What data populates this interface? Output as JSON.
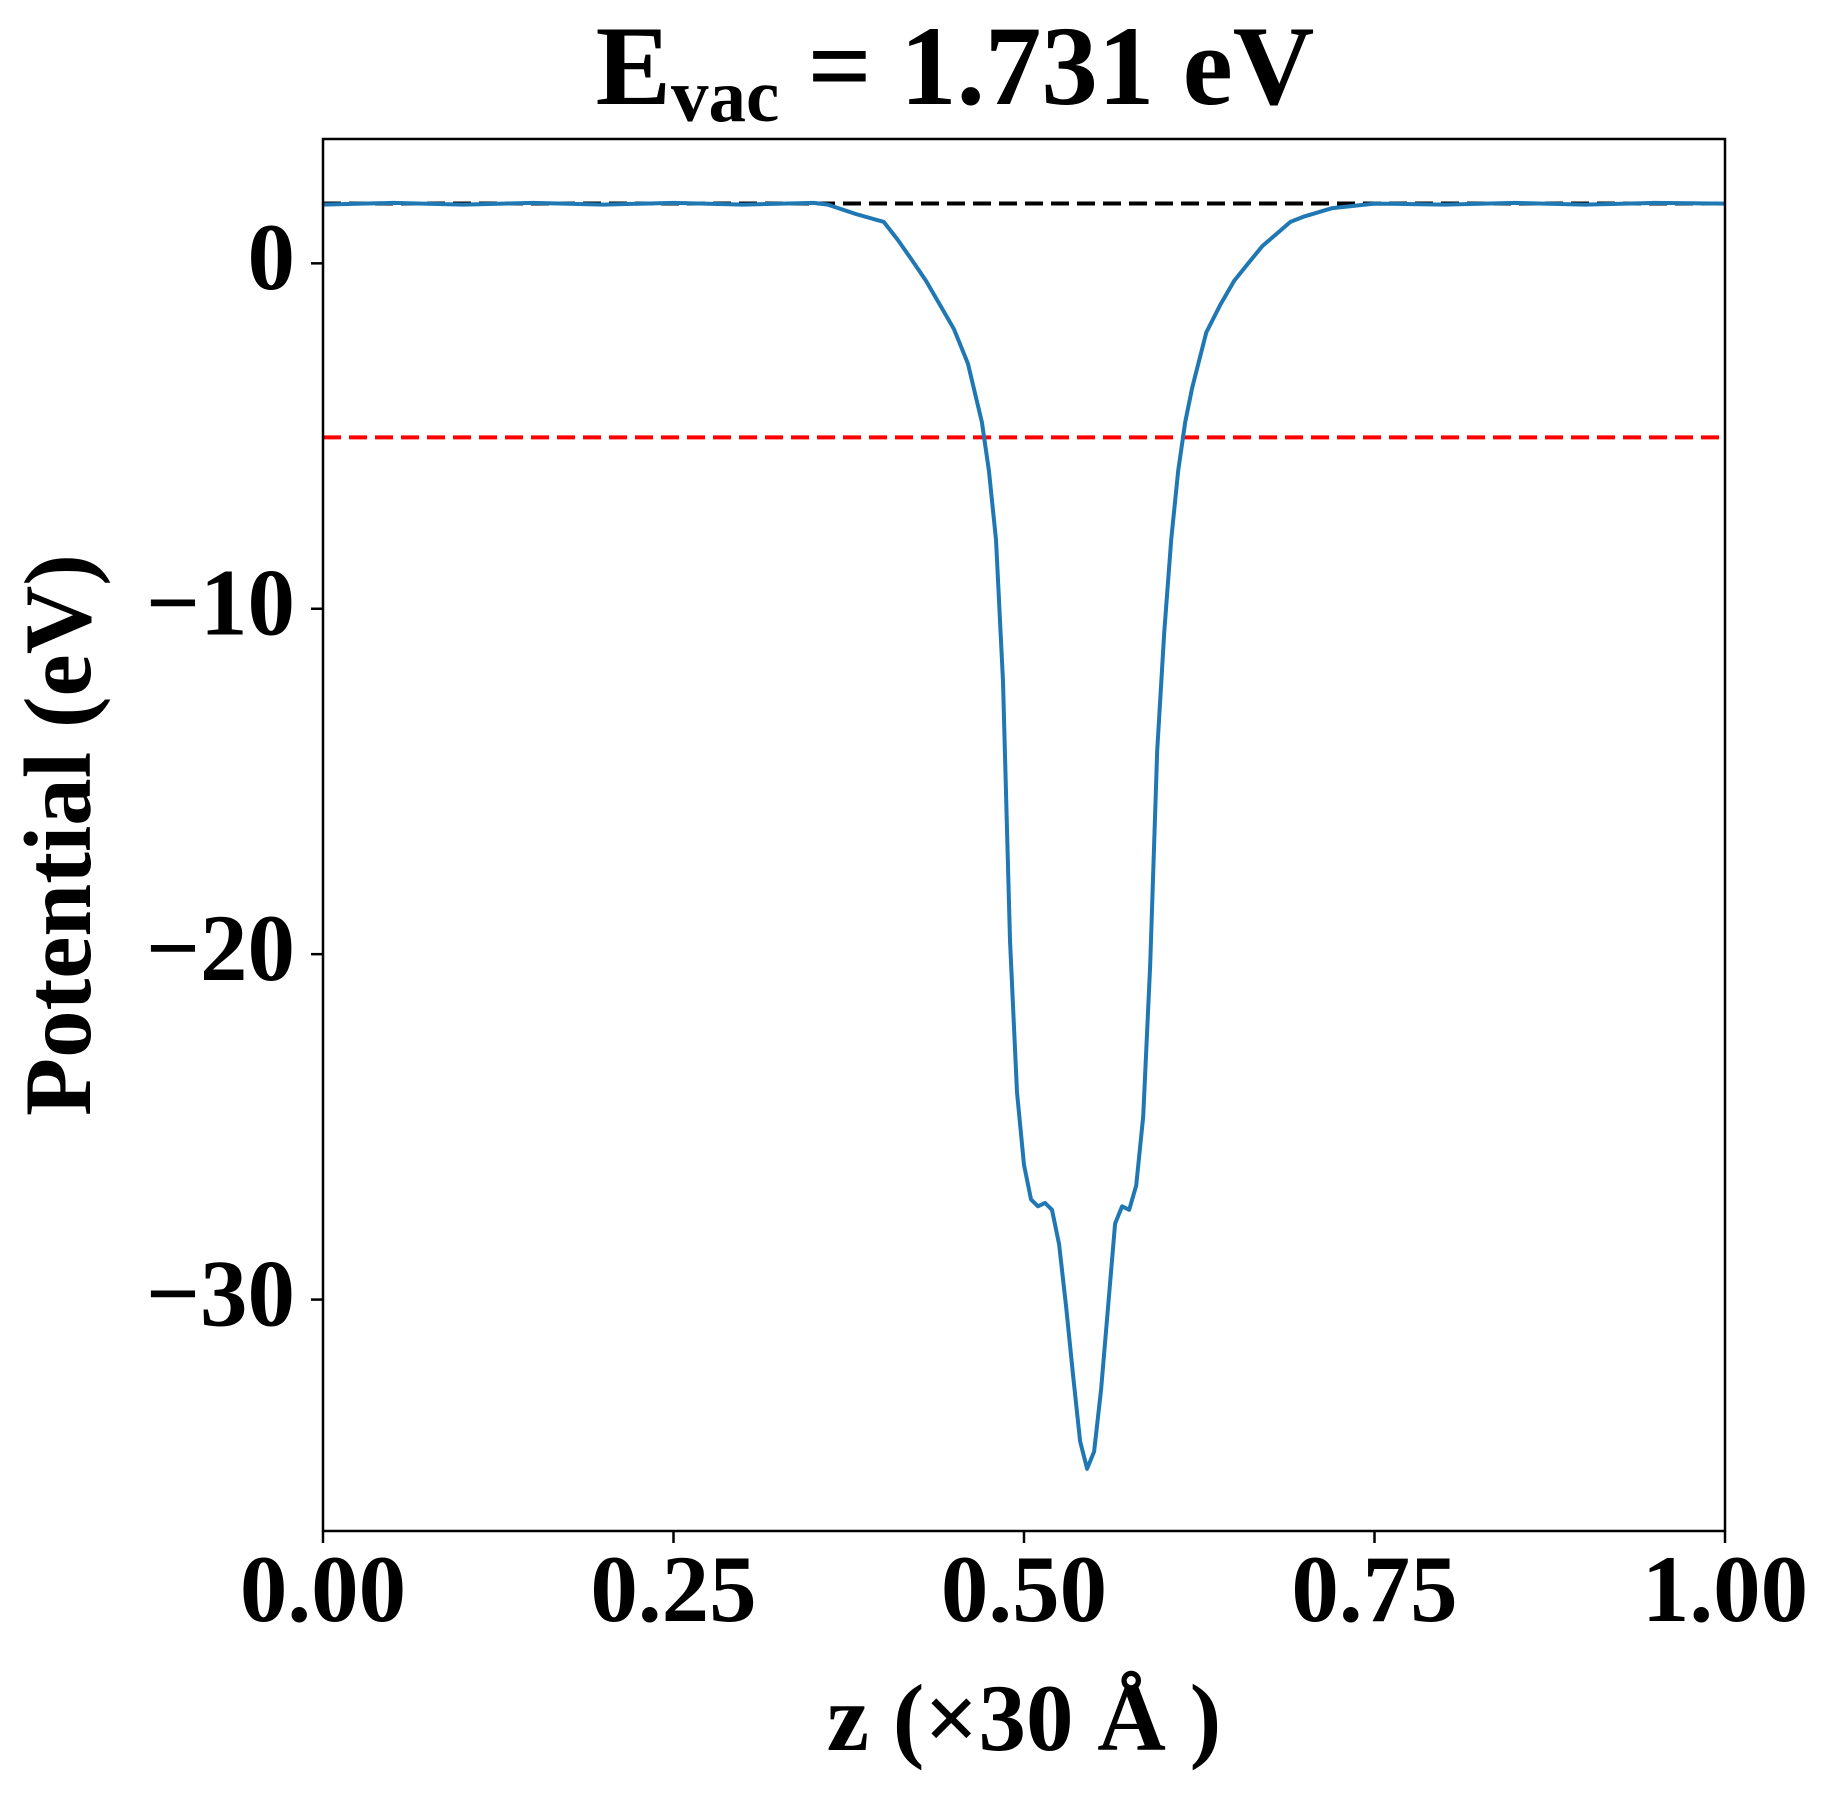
{
  "chart_data": {
    "type": "line",
    "title": {
      "main": "E",
      "sub": "vac",
      "rest": " = 1.731 eV"
    },
    "xlabel": "z (×30 Å )",
    "ylabel": "Potential (eV)",
    "xlim": [
      0,
      1
    ],
    "ylim": [
      -36.7,
      3.6
    ],
    "xticks": [
      {
        "value": 0,
        "label": "0.00"
      },
      {
        "value": 0.25,
        "label": "0.25"
      },
      {
        "value": 0.5,
        "label": "0.50"
      },
      {
        "value": 0.75,
        "label": "0.75"
      },
      {
        "value": 1,
        "label": "1.00"
      }
    ],
    "yticks": [
      {
        "value": 0,
        "label": "0"
      },
      {
        "value": -10,
        "label": "−10"
      },
      {
        "value": -20,
        "label": "−20"
      },
      {
        "value": -30,
        "label": "−30"
      }
    ],
    "hlines": [
      {
        "value": 1.731,
        "color": "#000000"
      },
      {
        "value": -5.04,
        "color": "#ff0000"
      }
    ],
    "series": [
      {
        "color": "#1f77b4",
        "x": [
          0,
          0.05,
          0.1,
          0.15,
          0.2,
          0.25,
          0.3,
          0.35,
          0.36,
          0.38,
          0.4,
          0.41,
          0.42,
          0.43,
          0.44,
          0.45,
          0.46,
          0.47,
          0.475,
          0.48,
          0.485,
          0.49,
          0.495,
          0.5,
          0.505,
          0.51,
          0.515,
          0.52,
          0.525,
          0.53,
          0.535,
          0.54,
          0.545,
          0.55,
          0.555,
          0.56,
          0.565,
          0.57,
          0.575,
          0.58,
          0.585,
          0.59,
          0.595,
          0.6,
          0.605,
          0.61,
          0.615,
          0.62,
          0.63,
          0.64,
          0.65,
          0.66,
          0.67,
          0.68,
          0.69,
          0.7,
          0.72,
          0.75,
          0.8,
          0.85,
          0.9,
          0.95,
          1.0
        ],
        "values": [
          1.7,
          1.75,
          1.7,
          1.75,
          1.7,
          1.75,
          1.7,
          1.75,
          1.7,
          1.43,
          1.2,
          0.68,
          0.1,
          -0.5,
          -1.2,
          -1.9,
          -2.9,
          -4.6,
          -6.0,
          -8.0,
          -12.1,
          -19.6,
          -24.0,
          -26.1,
          -27.1,
          -27.3,
          -27.2,
          -27.4,
          -28.4,
          -30.2,
          -32.2,
          -34.1,
          -34.9,
          -34.4,
          -32.6,
          -30.2,
          -27.8,
          -27.3,
          -27.4,
          -26.7,
          -24.7,
          -20.3,
          -14.1,
          -10.7,
          -8.0,
          -6.0,
          -4.6,
          -3.6,
          -2.0,
          -1.2,
          -0.5,
          0,
          0.5,
          0.85,
          1.2,
          1.36,
          1.6,
          1.73,
          1.7,
          1.75,
          1.7,
          1.75,
          1.73
        ]
      }
    ]
  }
}
